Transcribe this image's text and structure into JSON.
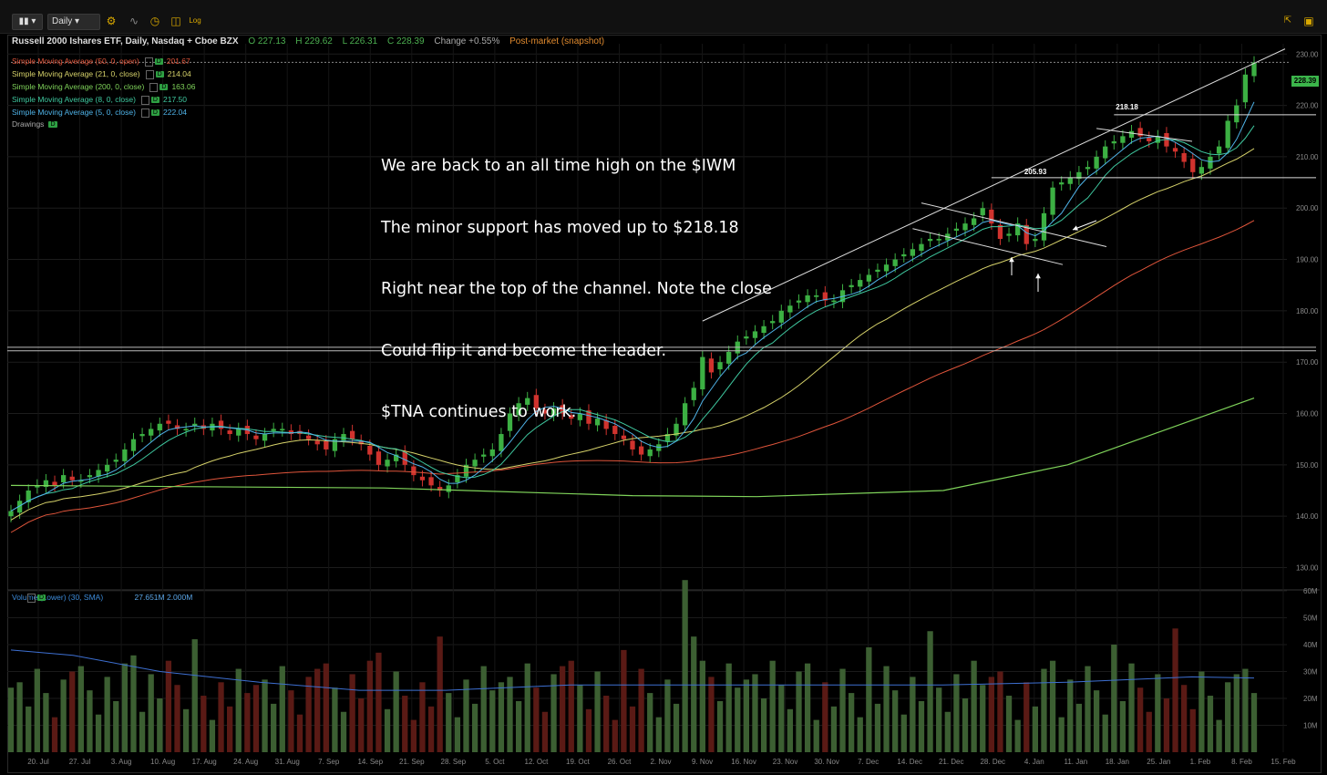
{
  "toolbar": {
    "period_label": "Daily"
  },
  "header": {
    "title": "Russell 2000 Ishares ETF, Daily, Nasdaq + Cboe BZX",
    "open": "O 227.13",
    "high": "H 229.62",
    "low": "L 226.31",
    "close": "C 228.39",
    "change": "Change +0.55%",
    "postmarket": "Post-market (snapshot)"
  },
  "studies": [
    {
      "label": "Simple Moving Average (50, 0, open)",
      "value": "201.67",
      "color": "#e0553b"
    },
    {
      "label": "Simple Moving Average (21, 0, close)",
      "value": "214.04",
      "color": "#d6d26a"
    },
    {
      "label": "Simple Moving Average (200, 0, close)",
      "value": "163.06",
      "color": "#7fd35a"
    },
    {
      "label": "Simple Moving Average (8, 0, close)",
      "value": "217.50",
      "color": "#3fc9a0"
    },
    {
      "label": "Simple Moving Average (5, 0, close)",
      "value": "222.04",
      "color": "#4fb3e8"
    }
  ],
  "drawings_label": "Drawings",
  "annotation": {
    "lines": [
      "We are back to an all time high on the $IWM",
      "The minor support has moved up to $218.18",
      "Right near the top of the channel. Note the close",
      "Could flip it and become the leader.",
      "$TNA continues to work."
    ]
  },
  "last_price_tag": "228.39",
  "volume_legend": {
    "label": "Volume (Lower) (30, SMA)",
    "value": "27.651M 2.000M"
  },
  "chart_data": {
    "type": "candlestick",
    "price_axis": {
      "ylim": [
        126,
        232
      ],
      "ticks": [
        130,
        140,
        150,
        160,
        170,
        180,
        190,
        200,
        210,
        220,
        230
      ],
      "tick_labels": [
        "130.00",
        "140.00",
        "150.00",
        "160.00",
        "170.00",
        "180.00",
        "190.00",
        "200.00",
        "210.00",
        "220.00",
        "230.00"
      ]
    },
    "volume_axis": {
      "ylim": [
        0,
        60
      ],
      "ticks": [
        10,
        20,
        30,
        40,
        50,
        60
      ],
      "tick_labels": [
        "10M",
        "20M",
        "30M",
        "40M",
        "50M",
        "60M"
      ]
    },
    "date_labels": [
      "20. Jul",
      "27. Jul",
      "3. Aug",
      "10. Aug",
      "17. Aug",
      "24. Aug",
      "31. Aug",
      "7. Sep",
      "14. Sep",
      "21. Sep",
      "28. Sep",
      "5. Oct",
      "12. Oct",
      "19. Oct",
      "26. Oct",
      "2. Nov",
      "9. Nov",
      "16. Nov",
      "23. Nov",
      "30. Nov",
      "7. Dec",
      "14. Dec",
      "21. Dec",
      "28. Dec",
      "4. Jan",
      "11. Jan",
      "18. Jan",
      "25. Jan",
      "1. Feb",
      "8. Feb",
      "15. Feb"
    ],
    "closes": [
      141,
      143,
      145,
      146,
      147,
      146,
      148,
      147,
      147,
      148,
      149,
      150,
      151,
      153,
      155,
      156,
      157,
      158,
      158,
      157,
      157,
      158,
      157,
      158,
      157,
      156,
      157,
      156,
      155,
      156,
      157,
      157,
      156,
      156,
      155,
      154,
      153,
      155,
      156,
      155,
      154,
      152,
      150,
      151,
      152,
      150,
      148,
      147,
      146,
      145,
      146,
      148,
      150,
      151,
      152,
      153,
      156,
      160,
      162,
      163,
      161,
      160,
      161,
      160,
      159,
      160,
      158,
      159,
      157,
      156,
      155,
      153,
      152,
      153,
      154,
      156,
      158,
      162,
      165,
      171,
      168,
      170,
      172,
      174,
      175,
      176,
      177,
      178,
      180,
      181,
      182,
      183,
      183,
      182,
      182,
      184,
      185,
      186,
      187,
      188,
      189,
      190,
      191,
      192,
      193,
      194,
      194,
      195,
      196,
      197,
      198,
      200,
      197,
      194,
      195,
      197,
      193,
      194,
      199,
      204,
      205,
      206,
      207,
      208,
      210,
      212,
      213,
      214,
      215,
      214,
      213,
      214,
      212,
      211,
      209,
      207,
      208,
      210,
      212,
      217,
      220,
      226,
      228.39
    ],
    "sma200_points": [
      [
        0,
        146
      ],
      [
        0.3,
        145.5
      ],
      [
        0.5,
        144
      ],
      [
        0.6,
        143.8
      ],
      [
        0.75,
        145
      ],
      [
        0.85,
        150
      ],
      [
        1,
        163
      ]
    ],
    "volume_sma_points": [
      [
        0,
        38
      ],
      [
        0.05,
        36
      ],
      [
        0.12,
        30
      ],
      [
        0.2,
        26
      ],
      [
        0.28,
        23
      ],
      [
        0.35,
        23
      ],
      [
        0.45,
        25
      ],
      [
        0.55,
        25
      ],
      [
        0.65,
        25
      ],
      [
        0.75,
        25
      ],
      [
        0.85,
        26
      ],
      [
        0.95,
        28
      ],
      [
        1,
        27.6
      ]
    ],
    "levels": [
      {
        "label": "218.18",
        "value": 218.18
      },
      {
        "label": "205.93",
        "value": 205.93
      }
    ]
  }
}
